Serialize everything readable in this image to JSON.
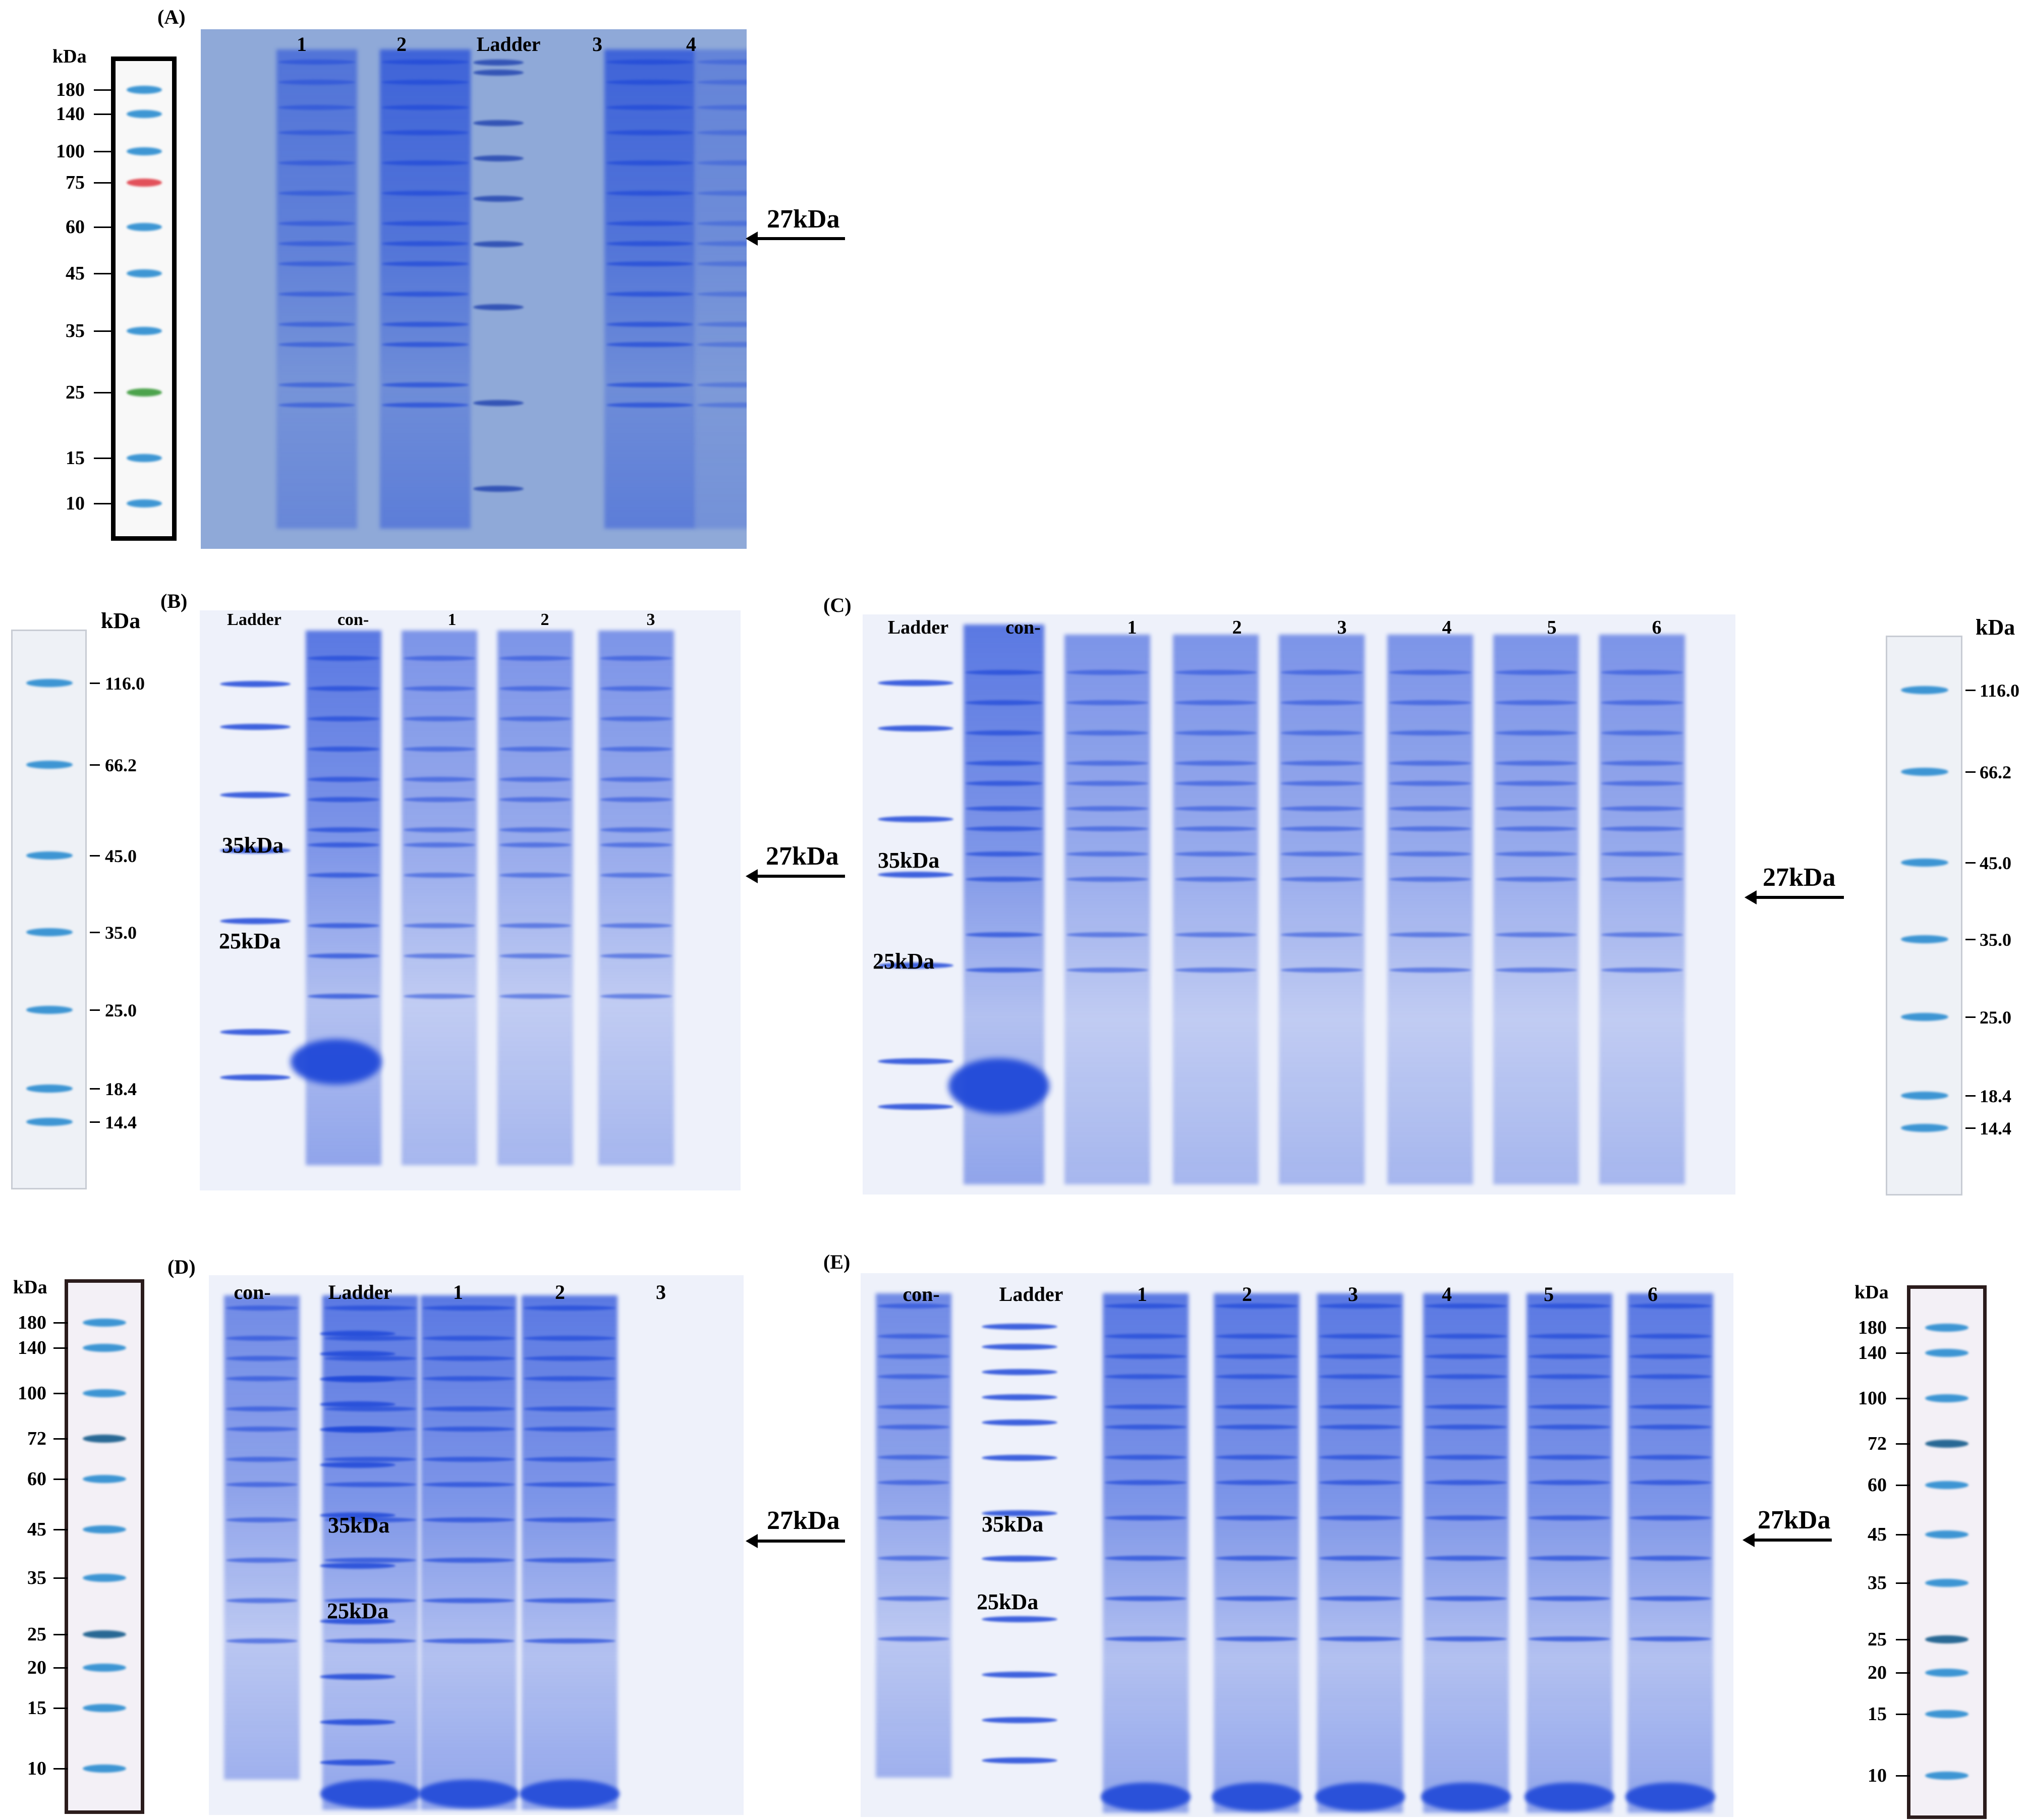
{
  "panels": [
    {
      "id": "A",
      "label": "(A)",
      "marker_unit": "kDa",
      "marker_values": [
        "180",
        "140",
        "100",
        "75",
        "60",
        "45",
        "35",
        "25",
        "15",
        "10"
      ],
      "lanes": [
        "1",
        "2",
        "Ladder",
        "3",
        "4"
      ],
      "annotation": "27kDa"
    },
    {
      "id": "B",
      "label": "(B)",
      "marker_unit": "kDa",
      "marker_values": [
        "116.0",
        "66.2",
        "45.0",
        "35.0",
        "25.0",
        "18.4",
        "14.4"
      ],
      "lanes": [
        "Ladder",
        "con-",
        "1",
        "2",
        "3"
      ],
      "ladder_labels": [
        "35kDa",
        "25kDa"
      ],
      "annotation": "27kDa"
    },
    {
      "id": "C",
      "label": "(C)",
      "marker_unit": "kDa",
      "marker_values": [
        "116.0",
        "66.2",
        "45.0",
        "35.0",
        "25.0",
        "18.4",
        "14.4"
      ],
      "lanes": [
        "Ladder",
        "con-",
        "1",
        "2",
        "3",
        "4",
        "5",
        "6"
      ],
      "ladder_labels": [
        "35kDa",
        "25kDa"
      ],
      "annotation": "27kDa"
    },
    {
      "id": "D",
      "label": "(D)",
      "marker_unit": "kDa",
      "marker_values": [
        "180",
        "140",
        "100",
        "72",
        "60",
        "45",
        "35",
        "25",
        "20",
        "15",
        "10"
      ],
      "lanes": [
        "con-",
        "Ladder",
        "1",
        "2",
        "3"
      ],
      "ladder_labels": [
        "35kDa",
        "25kDa"
      ],
      "annotation": "27kDa"
    },
    {
      "id": "E",
      "label": "(E)",
      "marker_unit": "kDa",
      "marker_values": [
        "180",
        "140",
        "100",
        "72",
        "60",
        "45",
        "35",
        "25",
        "20",
        "15",
        "10"
      ],
      "lanes": [
        "con-",
        "Ladder",
        "1",
        "2",
        "3",
        "4",
        "5",
        "6"
      ],
      "ladder_labels": [
        "35kDa",
        "25kDa"
      ],
      "annotation": "27kDa"
    }
  ],
  "colors": {
    "gel_A": "#7f9fd0",
    "gel_stain": "#1f48d8",
    "gel_bg": "#e8ecf8",
    "marker_blue": "#2a8cd0",
    "marker_red": "#e0404a",
    "marker_green": "#3a9a3a",
    "strip_BC": "#eef1f6",
    "strip_DE": "#f3f0f6"
  }
}
